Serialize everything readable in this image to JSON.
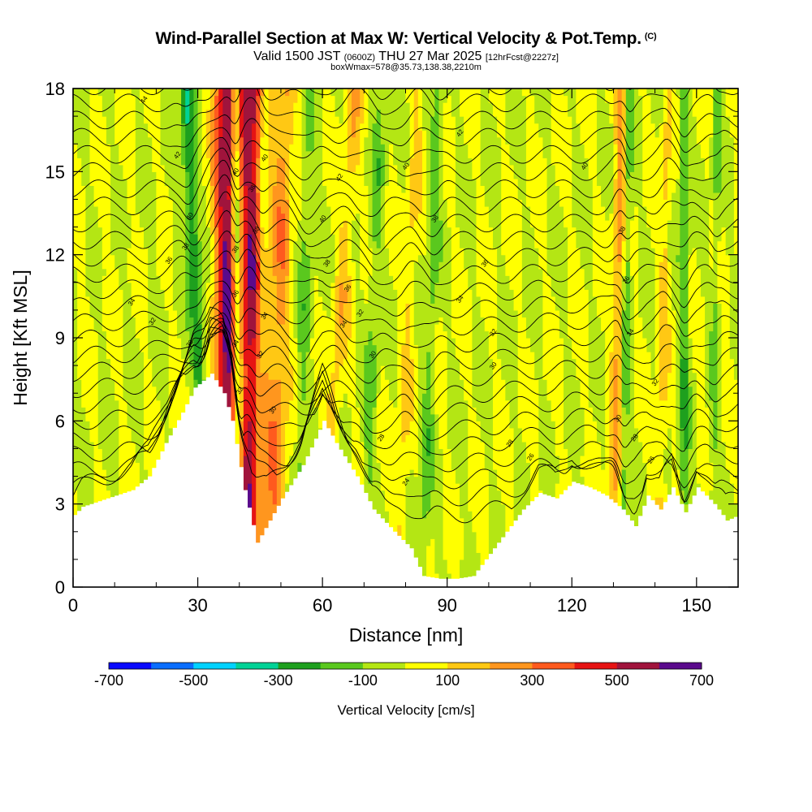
{
  "header": {
    "title": "Wind-Parallel Section at Max W: Vertical Velocity & Pot.Temp.",
    "copyright": "(C)",
    "subtitle_main_a": "Valid 1500 JST",
    "subtitle_small_a": "(0600Z)",
    "subtitle_main_b": "THU 27 Mar 2025",
    "subtitle_small_b": "[12hrFcst@2227z]",
    "info": "boxWmax=578@35.73,138.38,2210m"
  },
  "chart_data": {
    "type": "heatmap",
    "title": "Wind-Parallel Section at Max W: Vertical Velocity & Pot.Temp.",
    "xlabel": "Distance [nm]",
    "ylabel": "Height [Kft MSL]",
    "xlim": [
      0,
      160
    ],
    "ylim": [
      0,
      18
    ],
    "xticks": [
      "0",
      "30",
      "60",
      "90",
      "120",
      "150"
    ],
    "yticks": [
      "0",
      "3",
      "6",
      "9",
      "12",
      "15",
      "18"
    ],
    "grid": false,
    "colorbar": {
      "title": "Vertical Velocity [cm/s]",
      "tick_labels": [
        "-700",
        "-500",
        "-300",
        "-100",
        "100",
        "300",
        "500",
        "700"
      ],
      "colors": [
        "#0a0aff",
        "#0a6eff",
        "#00d2ff",
        "#00d296",
        "#1ea01e",
        "#5ac81e",
        "#b4e614",
        "#ffff00",
        "#ffc814",
        "#ff961e",
        "#ff5a1e",
        "#e61414",
        "#a0143c",
        "#5a0a8c"
      ]
    },
    "terrain_height_kft": [
      [
        0,
        2.6
      ],
      [
        2,
        2.9
      ],
      [
        8,
        3.2
      ],
      [
        14,
        3.5
      ],
      [
        18,
        4.0
      ],
      [
        22,
        5.2
      ],
      [
        26,
        6.3
      ],
      [
        29,
        7.2
      ],
      [
        33,
        7.7
      ],
      [
        36,
        7.0
      ],
      [
        38,
        6.0
      ],
      [
        41,
        3.5
      ],
      [
        44,
        1.6
      ],
      [
        47,
        2.4
      ],
      [
        50,
        3.2
      ],
      [
        55,
        4.4
      ],
      [
        60,
        6.0
      ],
      [
        63,
        5.2
      ],
      [
        68,
        4.0
      ],
      [
        72,
        2.8
      ],
      [
        77,
        2.0
      ],
      [
        81,
        1.4
      ],
      [
        84,
        0.4
      ],
      [
        88,
        0.3
      ],
      [
        92,
        0.3
      ],
      [
        96,
        0.4
      ],
      [
        100,
        1.2
      ],
      [
        104,
        2.0
      ],
      [
        108,
        2.8
      ],
      [
        112,
        3.4
      ],
      [
        116,
        3.2
      ],
      [
        120,
        3.8
      ],
      [
        124,
        3.6
      ],
      [
        128,
        3.3
      ],
      [
        132,
        2.8
      ],
      [
        135,
        2.2
      ],
      [
        138,
        3.3
      ],
      [
        141,
        2.8
      ],
      [
        144,
        3.6
      ],
      [
        147,
        2.7
      ],
      [
        150,
        3.6
      ],
      [
        154,
        3.0
      ],
      [
        157,
        2.4
      ],
      [
        160,
        2.6
      ]
    ],
    "updraft_bands": [
      {
        "x_top": 37,
        "x_bottom": 37,
        "w": 3.0,
        "intensity": 600
      },
      {
        "x_top": 43,
        "x_bottom": 43,
        "w": 3.0,
        "intensity": 550
      },
      {
        "x_top": 51,
        "x_bottom": 48,
        "w": 2.5,
        "intensity": 250
      },
      {
        "x_top": 68,
        "x_bottom": 60,
        "w": 2.0,
        "intensity": 150
      },
      {
        "x_top": 83,
        "x_bottom": 78,
        "w": 1.5,
        "intensity": 120
      },
      {
        "x_top": 132,
        "x_bottom": 130,
        "w": 1.5,
        "intensity": 220
      },
      {
        "x_top": 143,
        "x_bottom": 141,
        "w": 1.3,
        "intensity": 130
      }
    ],
    "downdraft_bands": [
      {
        "x_top": 27,
        "x_bottom": 33,
        "w": 1.6,
        "intensity": -300
      },
      {
        "x_top": 39,
        "x_bottom": 40,
        "w": 1.2,
        "intensity": -400
      },
      {
        "x_top": 46,
        "x_bottom": 44,
        "w": 1.2,
        "intensity": -150
      },
      {
        "x_top": 57,
        "x_bottom": 54,
        "w": 1.5,
        "intensity": -130
      },
      {
        "x_top": 74,
        "x_bottom": 70,
        "w": 1.5,
        "intensity": -130
      },
      {
        "x_top": 88,
        "x_bottom": 84,
        "w": 1.4,
        "intensity": -140
      },
      {
        "x_top": 134,
        "x_bottom": 132,
        "w": 1.0,
        "intensity": -180
      },
      {
        "x_top": 147,
        "x_bottom": 147,
        "w": 1.2,
        "intensity": -200
      },
      {
        "x_top": 155,
        "x_bottom": 154,
        "w": 1.0,
        "intensity": -120
      }
    ],
    "theta_contour_labels": [
      {
        "x": 17,
        "y": 17.6,
        "label": "44"
      },
      {
        "x": 25,
        "y": 15.6,
        "label": "42"
      },
      {
        "x": 28,
        "y": 13.4,
        "label": "40"
      },
      {
        "x": 27,
        "y": 12.3,
        "label": "38"
      },
      {
        "x": 23,
        "y": 11.8,
        "label": "36"
      },
      {
        "x": 14,
        "y": 10.3,
        "label": "34"
      },
      {
        "x": 19,
        "y": 9.6,
        "label": "32"
      },
      {
        "x": 28,
        "y": 8.8,
        "label": "30"
      },
      {
        "x": 39,
        "y": 15.0,
        "label": "40"
      },
      {
        "x": 43,
        "y": 14.4,
        "label": "38"
      },
      {
        "x": 39,
        "y": 12.2,
        "label": "38"
      },
      {
        "x": 39,
        "y": 10.6,
        "label": "36"
      },
      {
        "x": 39,
        "y": 8.8,
        "label": "34"
      },
      {
        "x": 40,
        "y": 7.1,
        "label": "32"
      },
      {
        "x": 46,
        "y": 15.5,
        "label": "40"
      },
      {
        "x": 44,
        "y": 12.9,
        "label": "38"
      },
      {
        "x": 46,
        "y": 9.8,
        "label": "34"
      },
      {
        "x": 45,
        "y": 8.4,
        "label": "32"
      },
      {
        "x": 48,
        "y": 6.4,
        "label": "30"
      },
      {
        "x": 64,
        "y": 14.8,
        "label": "42"
      },
      {
        "x": 60,
        "y": 13.3,
        "label": "40"
      },
      {
        "x": 61,
        "y": 11.7,
        "label": "38"
      },
      {
        "x": 66,
        "y": 10.8,
        "label": "36"
      },
      {
        "x": 69,
        "y": 9.9,
        "label": "32"
      },
      {
        "x": 65,
        "y": 9.5,
        "label": "34"
      },
      {
        "x": 72,
        "y": 8.4,
        "label": "30"
      },
      {
        "x": 80,
        "y": 15.2,
        "label": "40"
      },
      {
        "x": 87,
        "y": 13.3,
        "label": "38"
      },
      {
        "x": 99,
        "y": 11.7,
        "label": "36"
      },
      {
        "x": 93,
        "y": 10.4,
        "label": "34"
      },
      {
        "x": 101,
        "y": 9.2,
        "label": "32"
      },
      {
        "x": 101,
        "y": 8.0,
        "label": "30"
      },
      {
        "x": 93,
        "y": 16.4,
        "label": "42"
      },
      {
        "x": 123,
        "y": 15.2,
        "label": "40"
      },
      {
        "x": 132,
        "y": 12.9,
        "label": "38"
      },
      {
        "x": 133,
        "y": 11.1,
        "label": "36"
      },
      {
        "x": 134,
        "y": 9.2,
        "label": "34"
      },
      {
        "x": 140,
        "y": 7.4,
        "label": "32"
      },
      {
        "x": 131,
        "y": 6.1,
        "label": "30"
      },
      {
        "x": 74,
        "y": 5.4,
        "label": "28"
      },
      {
        "x": 80,
        "y": 3.8,
        "label": "24"
      },
      {
        "x": 105,
        "y": 5.2,
        "label": "28"
      },
      {
        "x": 110,
        "y": 4.7,
        "label": "26"
      },
      {
        "x": 135,
        "y": 5.4,
        "label": "28"
      },
      {
        "x": 139,
        "y": 4.6,
        "label": "26"
      }
    ]
  }
}
